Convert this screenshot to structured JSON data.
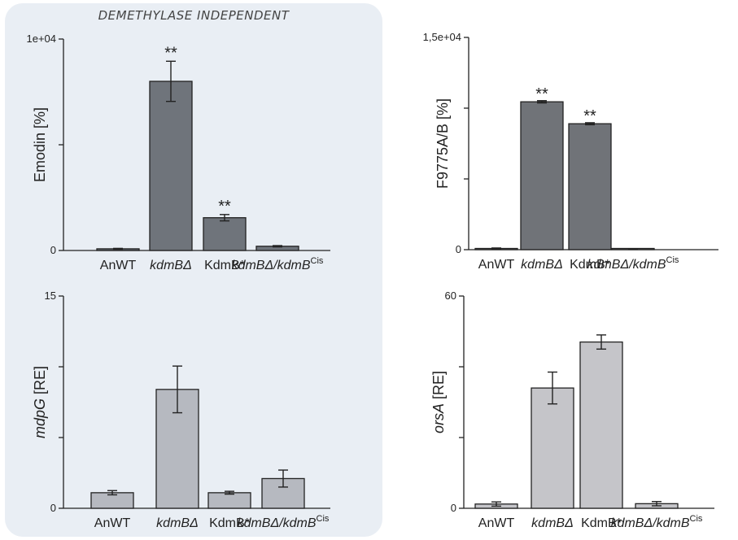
{
  "panel": {
    "title": "DEMETHYLASE INDEPENDENT",
    "background": "#e9eef4"
  },
  "chart_data": [
    {
      "type": "bar",
      "id": "emodin",
      "ylabel_parts": [
        {
          "text": "Emodin [%]",
          "italic": false
        }
      ],
      "ylim": [
        0,
        10000
      ],
      "yticks": [
        0,
        5000,
        10000
      ],
      "yticklabels": [
        "0",
        "",
        "1e+04"
      ],
      "bar_color": "#6f747b",
      "categories": [
        "AnWT",
        "kdmBΔ",
        "KdmB*",
        "kdmBΔ/kdmBCis"
      ],
      "category_parts": [
        [
          {
            "text": "AnWT",
            "italic": false
          }
        ],
        [
          {
            "text": "kdmBΔ",
            "italic": true
          }
        ],
        [
          {
            "text": "KdmB*",
            "italic": false
          }
        ],
        [
          {
            "text": "kdmBΔ/kdmB",
            "italic": true
          },
          {
            "text": "Cis",
            "italic": false,
            "sup": true
          }
        ]
      ],
      "values": [
        80,
        8000,
        1550,
        200
      ],
      "errors": [
        20,
        950,
        150,
        30
      ],
      "significance": [
        "",
        "**",
        "**",
        ""
      ],
      "grid": false
    },
    {
      "type": "bar",
      "id": "f9775",
      "ylabel_parts": [
        {
          "text": "F9775A/B [%]",
          "italic": false
        }
      ],
      "ylim": [
        0,
        15000
      ],
      "yticks": [
        0,
        5000,
        10000,
        15000
      ],
      "yticklabels": [
        "0",
        "",
        "",
        "1,5e+04"
      ],
      "bar_color": "#707378",
      "categories": [
        "AnWT",
        "kdmBΔ",
        "KdmB*",
        "kdmBΔ/kdmBCis"
      ],
      "category_parts": [
        [
          {
            "text": "AnWT",
            "italic": false
          }
        ],
        [
          {
            "text": "kdmBΔ",
            "italic": true
          }
        ],
        [
          {
            "text": "KdmB*",
            "italic": false
          }
        ],
        [
          {
            "text": "kdmBΔ/kdmB",
            "italic": true
          },
          {
            "text": "Cis",
            "italic": false,
            "sup": true
          }
        ]
      ],
      "values": [
        80,
        10450,
        8900,
        20
      ],
      "errors": [
        40,
        80,
        70,
        10
      ],
      "significance": [
        "",
        "**",
        "**",
        ""
      ],
      "grid": false
    },
    {
      "type": "bar",
      "id": "mdpg",
      "ylabel_parts": [
        {
          "text": "mdpG",
          "italic": true
        },
        {
          "text": " [RE]",
          "italic": false
        }
      ],
      "ylim": [
        0,
        15
      ],
      "yticks": [
        0,
        5,
        10,
        15
      ],
      "yticklabels": [
        "0",
        "",
        "",
        "15"
      ],
      "bar_color": "#b6b9c0",
      "categories": [
        "AnWT",
        "kdmBΔ",
        "KdmB*",
        "kdmBΔ/kdmBCis"
      ],
      "category_parts": [
        [
          {
            "text": "AnWT",
            "italic": false
          }
        ],
        [
          {
            "text": "kdmBΔ",
            "italic": true
          }
        ],
        [
          {
            "text": "KdmB*",
            "italic": false
          }
        ],
        [
          {
            "text": "kdmBΔ/kdmB",
            "italic": true
          },
          {
            "text": "Cis",
            "italic": false,
            "sup": true
          }
        ]
      ],
      "values": [
        1.1,
        8.4,
        1.1,
        2.1
      ],
      "errors": [
        0.15,
        1.65,
        0.1,
        0.6
      ],
      "significance": [
        "",
        "",
        "",
        ""
      ],
      "grid": false
    },
    {
      "type": "bar",
      "id": "orsa",
      "ylabel_parts": [
        {
          "text": "orsA",
          "italic": true
        },
        {
          "text": " [RE]",
          "italic": false
        }
      ],
      "ylim": [
        0,
        60
      ],
      "yticks": [
        0,
        20,
        40,
        60
      ],
      "yticklabels": [
        "0",
        "",
        "",
        "60"
      ],
      "bar_color": "#c5c5c9",
      "categories": [
        "AnWT",
        "kdmBΔ",
        "KdmB*",
        "kdmBΔ/kdmBCis"
      ],
      "category_parts": [
        [
          {
            "text": "AnWT",
            "italic": false
          }
        ],
        [
          {
            "text": "kdmBΔ",
            "italic": true
          }
        ],
        [
          {
            "text": "KdmB*",
            "italic": false
          }
        ],
        [
          {
            "text": "kdmBΔ/kdmB",
            "italic": true
          },
          {
            "text": "Cis",
            "italic": false,
            "sup": true
          }
        ]
      ],
      "values": [
        1.2,
        34,
        47,
        1.3
      ],
      "errors": [
        0.6,
        4.5,
        2.0,
        0.6
      ],
      "significance": [
        "",
        "",
        "",
        ""
      ],
      "grid": false
    }
  ]
}
